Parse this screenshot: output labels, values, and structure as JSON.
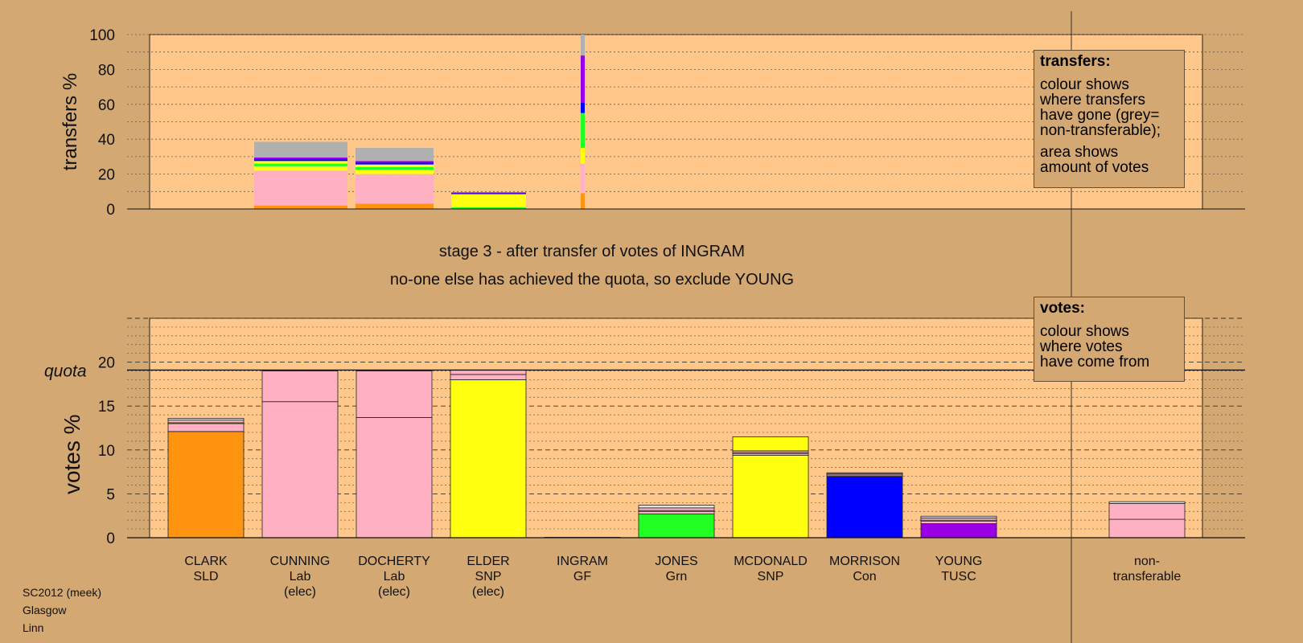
{
  "stage_title": "stage 3 - after transfer of votes of INGRAM",
  "stage_subtitle": "no-one else has achieved the quota, so exclude YOUNG",
  "footer": {
    "line1": "SC2012 (meek)",
    "line2": "Glasgow",
    "line3": "Linn"
  },
  "legend_transfers": {
    "heading": "transfers:",
    "lines1": [
      "colour shows",
      "where transfers",
      "have gone (grey=",
      "non-transferable);"
    ],
    "lines2": [
      "area shows",
      "amount of votes"
    ]
  },
  "legend_votes": {
    "heading": "votes:",
    "lines": [
      "colour shows",
      "where votes",
      "have come from"
    ]
  },
  "colors": {
    "background": "#d4a872",
    "plot_bg": "#ffc88a",
    "CLARK": "#ff9410",
    "Lab": "#ffb0c2",
    "SNP": "#ffff10",
    "INGRAM": "#e4e4e4",
    "JONES": "#22ff22",
    "MORRISON": "#0000ff",
    "YOUNG": "#9900e6",
    "non_transferable": "#b0b0b0"
  },
  "chart_data": [
    {
      "type": "bar",
      "subtype": "stacked-variable-width",
      "ylabel": "transfers %",
      "ylim": [
        0,
        100
      ],
      "yticks": [
        0,
        20,
        40,
        60,
        80,
        100
      ],
      "categories": [
        "CLARK",
        "CUNNING",
        "DOCHERTY",
        "ELDER",
        "INGRAM",
        "JONES",
        "MCDONALD",
        "MORRISON",
        "YOUNG"
      ],
      "bars": [
        {
          "candidate": "CUNNING",
          "segments": [
            {
              "to": "CLARK",
              "value": 2,
              "color": "#ff9410"
            },
            {
              "to": "Lab",
              "value": 20,
              "color": "#ffb0c2"
            },
            {
              "to": "SNP",
              "value": 2.5,
              "color": "#ffff10"
            },
            {
              "to": "JONES",
              "value": 1.5,
              "color": "#22ff22"
            },
            {
              "to": "SNP",
              "value": 1.5,
              "color": "#ffff10"
            },
            {
              "to": "MORRISON",
              "value": 1,
              "color": "#0000ff"
            },
            {
              "to": "YOUNG",
              "value": 1,
              "color": "#9900e6"
            },
            {
              "to": "non-transferable",
              "value": 9,
              "color": "#b0b0b0"
            }
          ]
        },
        {
          "candidate": "DOCHERTY",
          "segments": [
            {
              "to": "CLARK",
              "value": 3,
              "color": "#ff9410"
            },
            {
              "to": "Lab",
              "value": 17,
              "color": "#ffb0c2"
            },
            {
              "to": "SNP",
              "value": 2.5,
              "color": "#ffff10"
            },
            {
              "to": "JONES",
              "value": 1.5,
              "color": "#22ff22"
            },
            {
              "to": "SNP",
              "value": 1.5,
              "color": "#ffff10"
            },
            {
              "to": "MORRISON",
              "value": 1,
              "color": "#0000ff"
            },
            {
              "to": "YOUNG",
              "value": 1,
              "color": "#9900e6"
            },
            {
              "to": "non-transferable",
              "value": 7.5,
              "color": "#b0b0b0"
            }
          ]
        },
        {
          "candidate": "ELDER",
          "segments": [
            {
              "to": "JONES",
              "value": 1,
              "color": "#22ff22"
            },
            {
              "to": "SNP",
              "value": 7.5,
              "color": "#ffff10"
            },
            {
              "to": "MORRISON",
              "value": 0.5,
              "color": "#0000ff"
            },
            {
              "to": "YOUNG",
              "value": 0.5,
              "color": "#9900e6"
            }
          ]
        },
        {
          "candidate": "INGRAM",
          "segments": [
            {
              "to": "CLARK",
              "value": 9,
              "color": "#ff9410"
            },
            {
              "to": "Lab",
              "value": 17,
              "color": "#ffb0c2"
            },
            {
              "to": "SNP",
              "value": 9,
              "color": "#ffff10"
            },
            {
              "to": "JONES",
              "value": 20,
              "color": "#22ff22"
            },
            {
              "to": "MORRISON",
              "value": 6,
              "color": "#0000ff"
            },
            {
              "to": "YOUNG",
              "value": 27,
              "color": "#9900e6"
            },
            {
              "to": "non-transferable",
              "value": 12,
              "color": "#b0b0b0"
            }
          ]
        }
      ]
    },
    {
      "type": "bar",
      "subtype": "stacked",
      "ylabel": "votes %",
      "ylim": [
        0,
        25
      ],
      "yticks": [
        0,
        5,
        10,
        15,
        20
      ],
      "quota": 19.1,
      "quota_label": "quota",
      "categories": [
        {
          "name": "CLARK",
          "party": "SLD",
          "elected": ""
        },
        {
          "name": "CUNNING",
          "party": "Lab",
          "elected": "(elec)"
        },
        {
          "name": "DOCHERTY",
          "party": "Lab",
          "elected": "(elec)"
        },
        {
          "name": "ELDER",
          "party": "SNP",
          "elected": "(elec)"
        },
        {
          "name": "INGRAM",
          "party": "GF",
          "elected": ""
        },
        {
          "name": "JONES",
          "party": "Grn",
          "elected": ""
        },
        {
          "name": "MCDONALD",
          "party": "SNP",
          "elected": ""
        },
        {
          "name": "MORRISON",
          "party": "Con",
          "elected": ""
        },
        {
          "name": "YOUNG",
          "party": "TUSC",
          "elected": ""
        },
        {
          "name": "",
          "party": "",
          "elected": ""
        },
        {
          "name": "non-",
          "party": "transferable",
          "elected": ""
        }
      ],
      "bars": [
        {
          "candidate": "CLARK",
          "segments": [
            {
              "from": "CLARK",
              "value": 12.1,
              "color": "#ff9410"
            },
            {
              "from": "Lab",
              "value": 0.9,
              "color": "#ffb0c2"
            },
            {
              "from": "SNP",
              "value": 0.1,
              "color": "#ffff10"
            },
            {
              "from": "Lab",
              "value": 0.3,
              "color": "#ffb0c2"
            },
            {
              "from": "INGRAM",
              "value": 0.2,
              "color": "#e4e4e4"
            }
          ]
        },
        {
          "candidate": "CUNNING",
          "segments": [
            {
              "from": "Lab",
              "value": 15.5,
              "color": "#ffb0c2"
            },
            {
              "from": "Lab",
              "value": 3.5,
              "color": "#ffb0c2"
            },
            {
              "from": "INGRAM",
              "value": 0.1,
              "color": "#e4e4e4"
            }
          ]
        },
        {
          "candidate": "DOCHERTY",
          "segments": [
            {
              "from": "Lab",
              "value": 13.7,
              "color": "#ffb0c2"
            },
            {
              "from": "Lab",
              "value": 5.3,
              "color": "#ffb0c2"
            },
            {
              "from": "INGRAM",
              "value": 0.1,
              "color": "#e4e4e4"
            }
          ]
        },
        {
          "candidate": "ELDER",
          "segments": [
            {
              "from": "SNP",
              "value": 18.0,
              "color": "#ffff10"
            },
            {
              "from": "Lab",
              "value": 0.6,
              "color": "#ffb0c2"
            },
            {
              "from": "Lab",
              "value": 0.5,
              "color": "#ffb0c2"
            }
          ]
        },
        {
          "candidate": "INGRAM",
          "segments": [
            {
              "from": "INGRAM",
              "value": 0.05,
              "color": "#e4e4e4"
            }
          ]
        },
        {
          "candidate": "JONES",
          "segments": [
            {
              "from": "JONES",
              "value": 2.7,
              "color": "#22ff22"
            },
            {
              "from": "Lab",
              "value": 0.3,
              "color": "#ffb0c2"
            },
            {
              "from": "SNP",
              "value": 0.1,
              "color": "#ffff10"
            },
            {
              "from": "Lab",
              "value": 0.3,
              "color": "#ffb0c2"
            },
            {
              "from": "INGRAM",
              "value": 0.3,
              "color": "#e4e4e4"
            }
          ]
        },
        {
          "candidate": "MCDONALD",
          "segments": [
            {
              "from": "SNP",
              "value": 9.4,
              "color": "#ffff10"
            },
            {
              "from": "Lab",
              "value": 0.2,
              "color": "#ffb0c2"
            },
            {
              "from": "SNP",
              "value": 0.1,
              "color": "#ffff10"
            },
            {
              "from": "Lab",
              "value": 0.2,
              "color": "#ffb0c2"
            },
            {
              "from": "SNP",
              "value": 1.6,
              "color": "#ffff10"
            }
          ]
        },
        {
          "candidate": "MORRISON",
          "segments": [
            {
              "from": "MORRISON",
              "value": 7.0,
              "color": "#0000ff"
            },
            {
              "from": "Lab",
              "value": 0.15,
              "color": "#ffb0c2"
            },
            {
              "from": "Lab",
              "value": 0.15,
              "color": "#ffb0c2"
            },
            {
              "from": "INGRAM",
              "value": 0.1,
              "color": "#e4e4e4"
            }
          ]
        },
        {
          "candidate": "YOUNG",
          "segments": [
            {
              "from": "YOUNG",
              "value": 1.6,
              "color": "#9900e6"
            },
            {
              "from": "Lab",
              "value": 0.3,
              "color": "#ffb0c2"
            },
            {
              "from": "SNP",
              "value": 0.1,
              "color": "#ffff10"
            },
            {
              "from": "Lab",
              "value": 0.25,
              "color": "#ffb0c2"
            },
            {
              "from": "INGRAM",
              "value": 0.2,
              "color": "#e4e4e4"
            }
          ]
        },
        {
          "candidate": "non-transferable",
          "segments": [
            {
              "from": "Lab",
              "value": 2.1,
              "color": "#ffb0c2"
            },
            {
              "from": "Lab",
              "value": 1.8,
              "color": "#ffb0c2"
            },
            {
              "from": "INGRAM",
              "value": 0.2,
              "color": "#e4e4e4"
            }
          ]
        }
      ]
    }
  ]
}
